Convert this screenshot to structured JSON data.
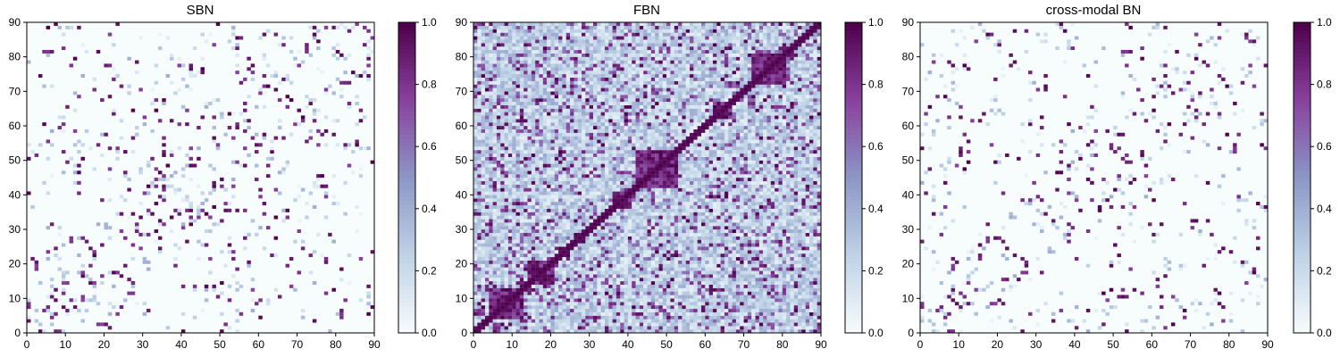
{
  "chart_data": [
    {
      "type": "heatmap",
      "title": "SBN",
      "xlabel": "",
      "ylabel": "",
      "xlim": [
        0,
        90
      ],
      "ylim": [
        0,
        90
      ],
      "xticks": [
        "0",
        "10",
        "20",
        "30",
        "40",
        "50",
        "60",
        "70",
        "80",
        "90"
      ],
      "yticks": [
        "0",
        "10",
        "20",
        "30",
        "40",
        "50",
        "60",
        "70",
        "80",
        "90"
      ],
      "grid_size": 90,
      "colorbar": {
        "range": [
          0.0,
          1.0
        ],
        "ticks": [
          "0.0",
          "0.2",
          "0.4",
          "0.6",
          "0.8",
          "1.0"
        ]
      },
      "colormap": [
        "#f7fcfd",
        "#bfd3e6",
        "#8c96c6",
        "#88419d",
        "#4d004b"
      ],
      "pattern": "sparse connectivity, symmetric about diagonal, mostly ~0 with scattered cells near 1.0",
      "seed": 11,
      "density": 0.035
    },
    {
      "type": "heatmap",
      "title": "FBN",
      "xlabel": "",
      "ylabel": "",
      "xlim": [
        0,
        90
      ],
      "ylim": [
        0,
        90
      ],
      "xticks": [
        "0",
        "10",
        "20",
        "30",
        "40",
        "50",
        "60",
        "70",
        "80",
        "90"
      ],
      "yticks": [
        "0",
        "10",
        "20",
        "30",
        "40",
        "50",
        "60",
        "70",
        "80",
        "90"
      ],
      "grid_size": 90,
      "colorbar": {
        "range": [
          0.0,
          1.0
        ],
        "ticks": [
          "0.0",
          "0.2",
          "0.4",
          "0.6",
          "0.8",
          "1.0"
        ]
      },
      "colormap": [
        "#f7fcfd",
        "#bfd3e6",
        "#8c96c6",
        "#88419d",
        "#4d004b"
      ],
      "pattern": "dense connectivity, symmetric, values mostly 0.1-0.6 with block clusters near 0.8-1.0 around the diagonal",
      "seed": 23,
      "density": 1.0
    },
    {
      "type": "heatmap",
      "title": "cross-modal BN",
      "xlabel": "",
      "ylabel": "",
      "xlim": [
        0,
        90
      ],
      "ylim": [
        0,
        90
      ],
      "xticks": [
        "0",
        "10",
        "20",
        "30",
        "40",
        "50",
        "60",
        "70",
        "80",
        "90"
      ],
      "yticks": [
        "0",
        "10",
        "20",
        "30",
        "40",
        "50",
        "60",
        "70",
        "80",
        "90"
      ],
      "grid_size": 90,
      "colorbar": {
        "range": [
          0.0,
          1.0
        ],
        "ticks": [
          "0.0",
          "0.2",
          "0.4",
          "0.6",
          "0.8",
          "1.0"
        ]
      },
      "colormap": [
        "#f7fcfd",
        "#bfd3e6",
        "#8c96c6",
        "#88419d",
        "#4d004b"
      ],
      "pattern": "sparse connectivity, symmetric, nearly binary values 0 or ~1.0",
      "seed": 11,
      "density": 0.03
    }
  ]
}
